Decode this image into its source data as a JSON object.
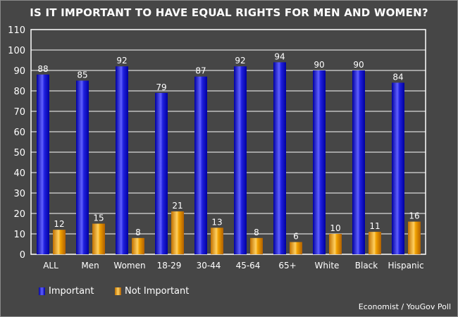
{
  "chart_data": {
    "type": "bar",
    "title": "IS IT IMPORTANT TO HAVE EQUAL RIGHTS FOR MEN AND WOMEN?",
    "categories": [
      "ALL",
      "Men",
      "Women",
      "18-29",
      "30-44",
      "45-64",
      "65+",
      "White",
      "Black",
      "Hispanic"
    ],
    "series": [
      {
        "name": "Important",
        "color": "#1010e0",
        "values": [
          88,
          85,
          92,
          79,
          87,
          92,
          94,
          90,
          90,
          84
        ]
      },
      {
        "name": "Not Important",
        "color": "#f0a000",
        "values": [
          12,
          15,
          8,
          21,
          13,
          8,
          6,
          10,
          11,
          16
        ]
      }
    ],
    "ylim": [
      0,
      110
    ],
    "yticks": [
      0,
      10,
      20,
      30,
      40,
      50,
      60,
      70,
      80,
      90,
      100,
      110
    ],
    "grid": true,
    "legend": "bottom-left",
    "source": "Economist / YouGov Poll"
  }
}
